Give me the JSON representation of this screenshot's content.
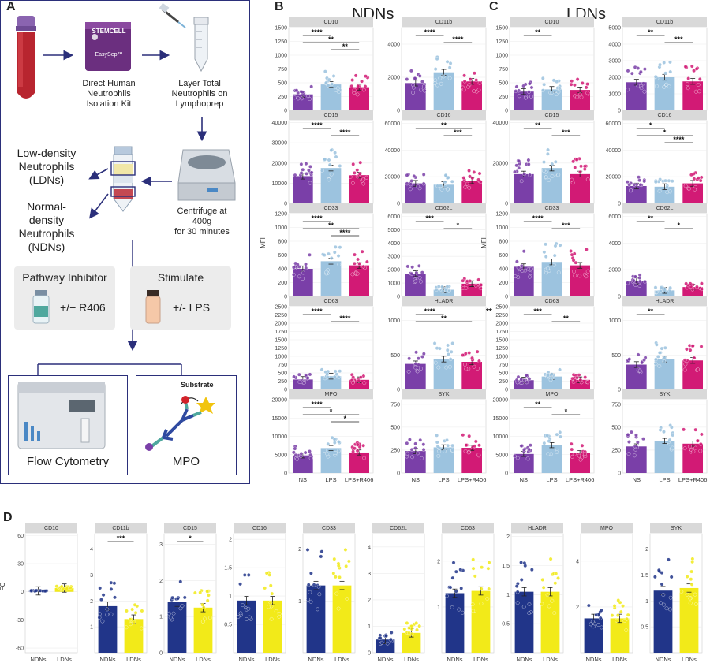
{
  "panel_letters": {
    "a": "A",
    "b": "B",
    "c": "C",
    "d": "D"
  },
  "plot_titles": {
    "b": "NDNs",
    "c": "LDNs"
  },
  "colors": {
    "ns": "#7a3fa8",
    "lps": "#9cc3df",
    "lps_r406": "#d21a75",
    "ndns": "#213589",
    "ldns": "#f2ea19",
    "panel_border": "#2b2f7a",
    "strip": "#d9d9d9",
    "grid": "#ececec"
  },
  "panelA": {
    "kit_brand": "STEMCELL",
    "kit_product": "EasySep™",
    "kit_label": [
      "Direct Human",
      "Neutrophils",
      "Isolation Kit"
    ],
    "layer_label": [
      "Layer Total",
      "Neutrophils on",
      "Lymphoprep"
    ],
    "centrifuge_label": [
      "Centrifuge at",
      "400g",
      "for 30 minutes"
    ],
    "ldn_label": [
      "Low-density",
      "Neutrophils",
      "(LDNs)"
    ],
    "ndn_label": [
      "Normal-",
      "density",
      "Neutrophils",
      "(NDNs)"
    ],
    "inhibitor_title": "Pathway Inhibitor",
    "inhibitor_value": "+/− R406",
    "stimulate_title": "Stimulate",
    "stimulate_value": "+/- LPS",
    "flow_label": "Flow Cytometry",
    "mpo_label": "MPO",
    "substrate_label": "Substrate"
  },
  "chart_data": [
    {
      "type": "bar",
      "title": "NDNs",
      "ylabel": "MFI",
      "categories": [
        "NS",
        "LPS",
        "LPS+R406"
      ],
      "facets": [
        {
          "name": "CD10",
          "ylim": [
            0,
            1500
          ],
          "ticks": [
            0,
            250,
            500,
            750,
            1000,
            1250,
            1500
          ],
          "values": [
            290,
            470,
            420
          ],
          "sig": [
            {
              "a": 0,
              "b": 1,
              "label": "****"
            },
            {
              "a": 0,
              "b": 2,
              "label": "**"
            },
            {
              "a": 1,
              "b": 2,
              "label": "**"
            }
          ]
        },
        {
          "name": "CD11b",
          "ylim": [
            0,
            5000
          ],
          "ticks": [
            0,
            2000,
            4000
          ],
          "values": [
            1650,
            2300,
            1750
          ],
          "sig": [
            {
              "a": 0,
              "b": 1,
              "label": "****"
            },
            {
              "a": 1,
              "b": 2,
              "label": "****"
            }
          ]
        },
        {
          "name": "CD15",
          "ylim": [
            0,
            41000
          ],
          "ticks": [
            0,
            10000,
            20000,
            30000,
            40000
          ],
          "values": [
            13500,
            17500,
            14000
          ],
          "sig": [
            {
              "a": 0,
              "b": 1,
              "label": "****"
            },
            {
              "a": 1,
              "b": 2,
              "label": "****"
            }
          ]
        },
        {
          "name": "CD16",
          "ylim": [
            0,
            62000
          ],
          "ticks": [
            0,
            20000,
            40000,
            60000
          ],
          "values": [
            15000,
            14000,
            17000
          ],
          "sig": [
            {
              "a": 0,
              "b": 2,
              "label": "**"
            },
            {
              "a": 1,
              "b": 2,
              "label": "***"
            }
          ]
        },
        {
          "name": "CD33",
          "ylim": [
            0,
            1200
          ],
          "ticks": [
            0,
            200,
            400,
            600,
            800,
            1000,
            1200
          ],
          "values": [
            400,
            510,
            450
          ],
          "sig": [
            {
              "a": 0,
              "b": 1,
              "label": "****"
            },
            {
              "a": 0,
              "b": 2,
              "label": "**"
            },
            {
              "a": 1,
              "b": 2,
              "label": "****"
            }
          ]
        },
        {
          "name": "CD62L",
          "ylim": [
            0,
            6200
          ],
          "ticks": [
            0,
            1000,
            2000,
            3000,
            4000,
            5000,
            6000
          ],
          "values": [
            1700,
            500,
            950
          ],
          "sig": [
            {
              "a": 0,
              "b": 1,
              "label": "***"
            },
            {
              "a": 1,
              "b": 2,
              "label": "*"
            }
          ]
        },
        {
          "name": "CD63",
          "ylim": [
            0,
            2500
          ],
          "ticks": [
            0,
            250,
            500,
            750,
            1000,
            1250,
            1500,
            1750,
            2000,
            2250,
            2500
          ],
          "values": [
            300,
            400,
            290
          ],
          "sig": [
            {
              "a": 0,
              "b": 1,
              "label": "****"
            },
            {
              "a": 1,
              "b": 2,
              "label": "****"
            }
          ]
        },
        {
          "name": "HLADR",
          "ylim": [
            0,
            1200
          ],
          "ticks": [
            0,
            500,
            1000
          ],
          "values": [
            370,
            440,
            400
          ],
          "sig": [
            {
              "a": 0,
              "b": 1,
              "label": "****"
            },
            {
              "a": 0,
              "b": 2,
              "label": "**"
            }
          ]
        },
        {
          "name": "MPO",
          "ylim": [
            0,
            20000
          ],
          "ticks": [
            0,
            5000,
            10000,
            15000,
            20000
          ],
          "values": [
            4800,
            6800,
            5600
          ],
          "sig": [
            {
              "a": 0,
              "b": 1,
              "label": "****"
            },
            {
              "a": 0,
              "b": 2,
              "label": "*"
            },
            {
              "a": 1,
              "b": 2,
              "label": "*"
            }
          ]
        },
        {
          "name": "SYK",
          "ylim": [
            0,
            800
          ],
          "ticks": [
            0,
            250,
            500,
            750
          ],
          "values": [
            240,
            280,
            275
          ],
          "sig": []
        }
      ]
    },
    {
      "type": "bar",
      "title": "LDNs",
      "ylabel": "MFI",
      "categories": [
        "NS",
        "LPS",
        "LPS+R406"
      ],
      "facets": [
        {
          "name": "CD10",
          "ylim": [
            0,
            1500
          ],
          "ticks": [
            0,
            250,
            500,
            750,
            1000,
            1250,
            1500
          ],
          "values": [
            340,
            380,
            370
          ],
          "sig": [
            {
              "a": 0,
              "b": 1,
              "label": "**"
            }
          ]
        },
        {
          "name": "CD11b",
          "ylim": [
            0,
            5000
          ],
          "ticks": [
            0,
            1000,
            2000,
            3000,
            4000,
            5000
          ],
          "values": [
            1700,
            2000,
            1750
          ],
          "sig": [
            {
              "a": 0,
              "b": 1,
              "label": "**"
            },
            {
              "a": 1,
              "b": 2,
              "label": "***"
            }
          ]
        },
        {
          "name": "CD15",
          "ylim": [
            0,
            41000
          ],
          "ticks": [
            0,
            20000,
            40000
          ],
          "values": [
            14500,
            17500,
            14500
          ],
          "sig": [
            {
              "a": 0,
              "b": 1,
              "label": "**"
            },
            {
              "a": 1,
              "b": 2,
              "label": "***"
            }
          ]
        },
        {
          "name": "CD16",
          "ylim": [
            0,
            62000
          ],
          "ticks": [
            0,
            20000,
            40000,
            60000
          ],
          "values": [
            13000,
            12500,
            15000
          ],
          "sig": [
            {
              "a": 0,
              "b": 1,
              "label": "*"
            },
            {
              "a": 0,
              "b": 2,
              "label": "*"
            },
            {
              "a": 1,
              "b": 2,
              "label": "****"
            }
          ]
        },
        {
          "name": "CD33",
          "ylim": [
            0,
            1200
          ],
          "ticks": [
            0,
            200,
            400,
            600,
            800,
            1000,
            1200
          ],
          "values": [
            430,
            500,
            450
          ],
          "sig": [
            {
              "a": 0,
              "b": 1,
              "label": "****"
            },
            {
              "a": 1,
              "b": 2,
              "label": "***"
            }
          ]
        },
        {
          "name": "CD62L",
          "ylim": [
            0,
            6200
          ],
          "ticks": [
            0,
            2000,
            4000,
            6000
          ],
          "values": [
            1150,
            450,
            700
          ],
          "sig": [
            {
              "a": 0,
              "b": 1,
              "label": "**"
            },
            {
              "a": 1,
              "b": 2,
              "label": "*"
            }
          ]
        },
        {
          "name": "CD63",
          "ylim": [
            0,
            2500
          ],
          "ticks": [
            0,
            250,
            500,
            750,
            1000,
            1250,
            1500,
            1750,
            2000,
            2250,
            2500
          ],
          "values": [
            280,
            390,
            290
          ],
          "sig": [
            {
              "a": 0,
              "b": 1,
              "label": "***"
            },
            {
              "a": 1,
              "b": 2,
              "label": "**"
            }
          ]
        },
        {
          "name": "HLADR",
          "ylim": [
            0,
            1200
          ],
          "ticks": [
            0,
            500,
            1000
          ],
          "values": [
            360,
            440,
            420
          ],
          "sig": [
            {
              "a": 0,
              "b": 1,
              "label": "**"
            }
          ]
        },
        {
          "name": "MPO",
          "ylim": [
            0,
            20000
          ],
          "ticks": [
            0,
            5000,
            10000,
            15000,
            20000
          ],
          "values": [
            5200,
            7600,
            5400
          ],
          "sig": [
            {
              "a": 0,
              "b": 1,
              "label": "**"
            },
            {
              "a": 1,
              "b": 2,
              "label": "*"
            }
          ]
        },
        {
          "name": "SYK",
          "ylim": [
            0,
            800
          ],
          "ticks": [
            0,
            250,
            500,
            750
          ],
          "values": [
            290,
            350,
            320
          ],
          "sig": []
        }
      ],
      "annotation": "**"
    },
    {
      "type": "bar",
      "title": "",
      "ylabel": "FC",
      "categories": [
        "NDNs",
        "LDNs"
      ],
      "facets": [
        {
          "name": "CD10",
          "ylim": [
            -65,
            62
          ],
          "ticks": [
            -60,
            -30,
            0,
            30,
            60
          ],
          "values": [
            1,
            4
          ],
          "sig": []
        },
        {
          "name": "CD11b",
          "ylim": [
            0,
            4.6
          ],
          "ticks": [
            1,
            2,
            3,
            4
          ],
          "values": [
            1.8,
            1.3
          ],
          "sig": [
            {
              "a": 0,
              "b": 1,
              "label": "***"
            }
          ]
        },
        {
          "name": "CD15",
          "ylim": [
            0,
            3.3
          ],
          "ticks": [
            0,
            1,
            2,
            3
          ],
          "values": [
            1.4,
            1.25
          ],
          "sig": [
            {
              "a": 0,
              "b": 1,
              "label": "*"
            }
          ]
        },
        {
          "name": "CD16",
          "ylim": [
            0,
            2.1
          ],
          "ticks": [
            0.5,
            1.0,
            1.5,
            2.0
          ],
          "values": [
            0.92,
            0.92
          ],
          "sig": []
        },
        {
          "name": "CD33",
          "ylim": [
            0,
            2.3
          ],
          "ticks": [
            1,
            2
          ],
          "values": [
            1.3,
            1.3
          ],
          "sig": []
        },
        {
          "name": "CD62L",
          "ylim": [
            0,
            4.5
          ],
          "ticks": [
            0,
            1,
            2,
            3,
            4
          ],
          "values": [
            0.5,
            0.75
          ],
          "sig": []
        },
        {
          "name": "CD63",
          "ylim": [
            0,
            2.6
          ],
          "ticks": [
            1,
            2
          ],
          "values": [
            1.3,
            1.35
          ],
          "sig": []
        },
        {
          "name": "HLADR",
          "ylim": [
            0,
            2.05
          ],
          "ticks": [
            0.5,
            1.0,
            1.5,
            2.0
          ],
          "values": [
            1.05,
            1.05
          ],
          "sig": []
        },
        {
          "name": "MPO",
          "ylim": [
            0,
            5.2
          ],
          "ticks": [
            2,
            4
          ],
          "values": [
            1.5,
            1.5
          ],
          "sig": []
        },
        {
          "name": "SYK",
          "ylim": [
            0,
            2.3
          ],
          "ticks": [
            0.5,
            1.0,
            1.5,
            2.0
          ],
          "values": [
            1.2,
            1.25
          ],
          "sig": []
        }
      ]
    }
  ]
}
